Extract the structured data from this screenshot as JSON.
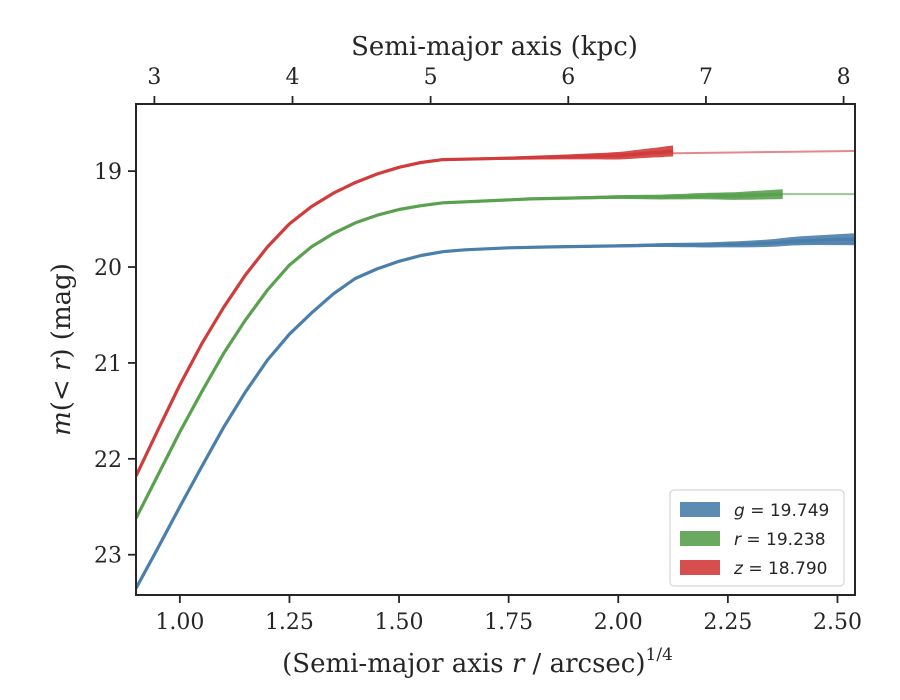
{
  "chart_data": {
    "type": "line",
    "xlabel": "(Semi-major axis r / arcsec)",
    "xlabel_parts": {
      "prefix": "(Semi-major axis ",
      "var": "r",
      "suffix": " / arcsec)",
      "exponent": "1/4"
    },
    "ylabel_parts": {
      "m": "m",
      "inner": "(< ",
      "var": "r",
      "close": ")",
      "unit": " (mag)"
    },
    "top_xlabel": "Semi-major axis (kpc)",
    "xlim": [
      0.9,
      2.54
    ],
    "ylim": [
      23.42,
      18.3
    ],
    "y_inverted": true,
    "x_ticks": [
      1.0,
      1.25,
      1.5,
      1.75,
      2.0,
      2.25,
      2.5
    ],
    "x_tick_labels": [
      "1.00",
      "1.25",
      "1.50",
      "1.75",
      "2.00",
      "2.25",
      "2.50"
    ],
    "y_ticks": [
      19,
      20,
      21,
      22,
      23
    ],
    "y_tick_labels": [
      "19",
      "20",
      "21",
      "22",
      "23"
    ],
    "top_ticks": [
      {
        "label": "3",
        "x": 0.942
      },
      {
        "label": "4",
        "x": 1.257
      },
      {
        "label": "5",
        "x": 1.572
      },
      {
        "label": "6",
        "x": 1.886
      },
      {
        "label": "7",
        "x": 2.2
      },
      {
        "label": "8",
        "x": 2.514
      }
    ],
    "legend_position": "lower-right",
    "grid": false,
    "series": [
      {
        "band": "g",
        "value_text": "19.749",
        "color": "#4a7eab",
        "band_end": 2.54,
        "band_width": 0.05,
        "points": [
          [
            0.9,
            23.35
          ],
          [
            0.95,
            22.93
          ],
          [
            1.0,
            22.5
          ],
          [
            1.05,
            22.08
          ],
          [
            1.1,
            21.67
          ],
          [
            1.15,
            21.3
          ],
          [
            1.2,
            20.97
          ],
          [
            1.25,
            20.7
          ],
          [
            1.3,
            20.48
          ],
          [
            1.35,
            20.28
          ],
          [
            1.4,
            20.12
          ],
          [
            1.45,
            20.02
          ],
          [
            1.5,
            19.94
          ],
          [
            1.55,
            19.88
          ],
          [
            1.6,
            19.84
          ],
          [
            1.65,
            19.82
          ],
          [
            1.75,
            19.8
          ],
          [
            1.85,
            19.79
          ],
          [
            2.0,
            19.78
          ],
          [
            2.1,
            19.77
          ],
          [
            2.2,
            19.77
          ],
          [
            2.3,
            19.76
          ],
          [
            2.35,
            19.75
          ],
          [
            2.4,
            19.73
          ],
          [
            2.45,
            19.72
          ],
          [
            2.54,
            19.71
          ]
        ],
        "model": [
          [
            2.35,
            19.75
          ],
          [
            2.54,
            19.75
          ]
        ]
      },
      {
        "band": "r",
        "value_text": "19.238",
        "color": "#59a14f",
        "band_end": 2.375,
        "band_width": 0.04,
        "points": [
          [
            0.9,
            22.62
          ],
          [
            0.95,
            22.17
          ],
          [
            1.0,
            21.72
          ],
          [
            1.05,
            21.3
          ],
          [
            1.1,
            20.9
          ],
          [
            1.15,
            20.55
          ],
          [
            1.2,
            20.24
          ],
          [
            1.25,
            19.98
          ],
          [
            1.3,
            19.79
          ],
          [
            1.35,
            19.65
          ],
          [
            1.4,
            19.54
          ],
          [
            1.45,
            19.46
          ],
          [
            1.5,
            19.4
          ],
          [
            1.55,
            19.36
          ],
          [
            1.6,
            19.33
          ],
          [
            1.7,
            19.31
          ],
          [
            1.8,
            19.29
          ],
          [
            1.9,
            19.28
          ],
          [
            2.0,
            19.27
          ],
          [
            2.1,
            19.27
          ],
          [
            2.2,
            19.26
          ],
          [
            2.27,
            19.26
          ],
          [
            2.375,
            19.24
          ]
        ],
        "model": [
          [
            2.2,
            19.24
          ],
          [
            2.54,
            19.24
          ]
        ]
      },
      {
        "band": "z",
        "value_text": "18.790",
        "color": "#d13b3b",
        "band_end": 2.125,
        "band_width": 0.045,
        "points": [
          [
            0.9,
            22.18
          ],
          [
            0.95,
            21.7
          ],
          [
            1.0,
            21.23
          ],
          [
            1.05,
            20.8
          ],
          [
            1.1,
            20.42
          ],
          [
            1.15,
            20.08
          ],
          [
            1.2,
            19.79
          ],
          [
            1.25,
            19.55
          ],
          [
            1.3,
            19.37
          ],
          [
            1.35,
            19.23
          ],
          [
            1.4,
            19.12
          ],
          [
            1.45,
            19.03
          ],
          [
            1.5,
            18.96
          ],
          [
            1.55,
            18.91
          ],
          [
            1.6,
            18.88
          ],
          [
            1.7,
            18.87
          ],
          [
            1.8,
            18.86
          ],
          [
            1.9,
            18.85
          ],
          [
            2.0,
            18.84
          ],
          [
            2.05,
            18.82
          ],
          [
            2.125,
            18.79
          ]
        ],
        "model": [
          [
            1.75,
            18.86
          ],
          [
            2.0,
            18.82
          ],
          [
            2.54,
            18.79
          ]
        ]
      }
    ]
  }
}
